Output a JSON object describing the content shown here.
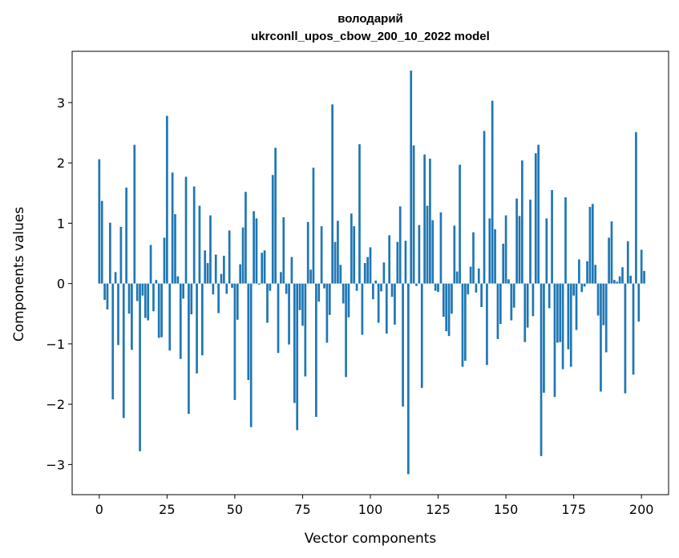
{
  "chart_data": {
    "type": "bar",
    "title": "володарий",
    "subtitle": "ukrconll_upos_cbow_200_10_2022 model",
    "xlabel": "Vector components",
    "ylabel": "Components values",
    "xlim": [
      -10,
      210
    ],
    "ylim": [
      -3.5,
      3.85
    ],
    "xticks": [
      0,
      25,
      50,
      75,
      100,
      125,
      150,
      175,
      200
    ],
    "xtick_labels": [
      "0",
      "25",
      "50",
      "75",
      "100",
      "125",
      "150",
      "175",
      "200"
    ],
    "yticks": [
      -3,
      -2,
      -1,
      0,
      1,
      2,
      3
    ],
    "ytick_labels": [
      "−3",
      "−2",
      "−1",
      "0",
      "1",
      "2",
      "3"
    ],
    "bar_color": "#1f77b4",
    "values": [
      2.06,
      1.37,
      -0.27,
      -0.43,
      1.01,
      -1.92,
      0.19,
      -1.02,
      0.94,
      -2.23,
      1.59,
      -0.5,
      -1.1,
      2.3,
      -0.29,
      -2.78,
      -0.2,
      -0.57,
      -0.61,
      0.64,
      -0.46,
      0.06,
      -0.9,
      -0.89,
      0.76,
      2.78,
      -1.11,
      1.84,
      1.15,
      0.12,
      -1.25,
      -0.25,
      1.77,
      -2.16,
      -0.51,
      1.61,
      -1.49,
      1.29,
      -1.19,
      0.55,
      0.34,
      1.13,
      -0.18,
      0.48,
      -0.49,
      0.16,
      0.46,
      -0.17,
      0.88,
      -0.07,
      -1.93,
      -0.6,
      0.32,
      0.93,
      1.52,
      -1.6,
      -2.38,
      1.2,
      1.08,
      -0.02,
      0.51,
      0.55,
      -0.65,
      -0.12,
      1.8,
      2.25,
      -1.15,
      0.19,
      1.1,
      -0.17,
      -1.01,
      0.44,
      -1.98,
      -2.43,
      -0.44,
      -0.7,
      -1.54,
      1.02,
      0.23,
      1.92,
      -2.21,
      -0.3,
      0.95,
      -0.08,
      -0.98,
      -0.52,
      2.97,
      0.69,
      1.04,
      0.31,
      -0.33,
      -1.55,
      -0.56,
      1.16,
      0.95,
      -0.12,
      2.31,
      -0.85,
      0.34,
      0.44,
      0.6,
      -0.26,
      0.05,
      -0.65,
      -0.13,
      0.35,
      -0.83,
      0.8,
      -0.22,
      -0.68,
      0.69,
      1.28,
      -2.04,
      0.71,
      -3.16,
      3.53,
      2.29,
      -0.04,
      0.97,
      -1.73,
      2.14,
      1.29,
      2.07,
      1.05,
      -0.12,
      -0.14,
      1.18,
      -0.55,
      -0.79,
      -0.87,
      -0.5,
      0.96,
      0.2,
      1.97,
      -1.38,
      -1.28,
      -0.18,
      0.28,
      0.85,
      -0.15,
      0.25,
      -0.39,
      2.53,
      -1.35,
      1.08,
      3.03,
      0.9,
      -0.92,
      -0.67,
      0.66,
      1.13,
      0.07,
      -0.61,
      -0.4,
      1.41,
      1.12,
      2.04,
      -0.97,
      -0.73,
      1.39,
      -0.54,
      2.16,
      2.3,
      -2.86,
      -1.81,
      1.08,
      -0.41,
      1.55,
      -1.88,
      -0.98,
      -0.97,
      -1.42,
      1.43,
      -1.09,
      -1.38,
      -0.2,
      -0.77,
      0.4,
      -0.14,
      -0.05,
      0.37,
      1.27,
      1.32,
      0.31,
      -0.53,
      -1.79,
      -0.69,
      -1.14,
      0.76,
      1.03,
      0.06,
      0.03,
      0.12,
      0.27,
      -1.82,
      0.7,
      0.13,
      -1.51,
      2.51,
      -0.63,
      0.56,
      0.21
    ]
  }
}
